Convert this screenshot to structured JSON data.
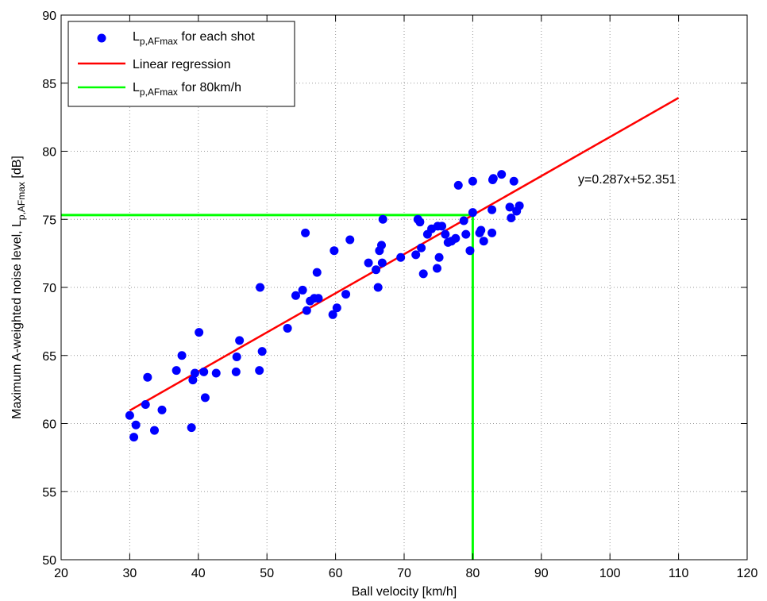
{
  "chart_data": {
    "type": "scatter",
    "xlabel": "Ball velocity [km/h]",
    "ylabel": "Maximum A-weighted noise level, L",
    "ylabel_subscript": "p,AFmax",
    "ylabel_unit": " [dB]",
    "xlim": [
      20,
      120
    ],
    "ylim": [
      50,
      90
    ],
    "xticks": [
      20,
      30,
      40,
      50,
      60,
      70,
      80,
      90,
      100,
      110,
      120
    ],
    "yticks": [
      50,
      55,
      60,
      65,
      70,
      75,
      80,
      85,
      90
    ],
    "grid": true,
    "legend_position": "top-left",
    "annotation": "y=0.287x+52.351",
    "colors": {
      "points": "#0000ff",
      "regression": "#ff0000",
      "reference": "#00ff00"
    },
    "series": [
      {
        "name": "for each shot",
        "name_prefix": "L",
        "name_subscript": "p,AFmax",
        "kind": "points",
        "x": [
          30.0,
          30.6,
          30.9,
          32.3,
          32.6,
          33.6,
          34.7,
          36.8,
          37.6,
          39.0,
          39.2,
          39.5,
          40.1,
          40.8,
          41.0,
          42.6,
          45.5,
          45.6,
          46.0,
          48.9,
          49.0,
          49.3,
          53.0,
          54.2,
          55.2,
          55.6,
          55.8,
          56.3,
          56.9,
          57.3,
          57.5,
          59.6,
          59.8,
          60.2,
          61.5,
          62.1,
          64.8,
          65.9,
          66.2,
          66.4,
          66.7,
          66.9,
          66.8,
          69.5,
          71.7,
          72.0,
          72.3,
          72.5,
          72.8,
          73.4,
          74.0,
          74.8,
          74.9,
          75.1,
          75.5,
          76.0,
          76.4,
          76.9,
          77.5,
          77.9,
          78.7,
          79.0,
          79.6,
          80.0,
          80.0,
          81.0,
          81.2,
          81.6,
          82.8,
          82.8,
          82.9,
          83.0,
          84.2,
          85.4,
          85.6,
          86.0,
          86.4,
          86.8
        ],
        "y": [
          60.6,
          59.0,
          59.9,
          61.4,
          63.4,
          59.5,
          61.0,
          63.9,
          65.0,
          59.7,
          63.2,
          63.7,
          66.7,
          63.8,
          61.9,
          63.7,
          63.8,
          64.9,
          66.1,
          63.9,
          70.0,
          65.3,
          67.0,
          69.4,
          69.8,
          74.0,
          68.3,
          69.0,
          69.2,
          71.1,
          69.2,
          68.0,
          72.7,
          68.5,
          69.5,
          73.5,
          71.8,
          71.3,
          70.0,
          72.7,
          73.1,
          75.0,
          71.8,
          72.2,
          72.4,
          75.0,
          74.8,
          72.9,
          71.0,
          73.9,
          74.3,
          71.4,
          74.5,
          72.2,
          74.5,
          73.9,
          73.3,
          73.4,
          73.6,
          77.5,
          74.9,
          73.9,
          72.7,
          75.5,
          77.8,
          74.0,
          74.2,
          73.4,
          74.0,
          75.7,
          77.9,
          78.0,
          78.3,
          75.9,
          75.1,
          77.8,
          75.6,
          76.0
        ]
      },
      {
        "name": "Linear regression",
        "kind": "line",
        "x": [
          30,
          110
        ],
        "y": [
          60.96,
          83.92
        ]
      },
      {
        "name": "for 80km/h",
        "name_prefix": "L",
        "name_subscript": "p,AFmax",
        "kind": "reference",
        "x_value": 80,
        "y_value": 75.31
      }
    ]
  }
}
